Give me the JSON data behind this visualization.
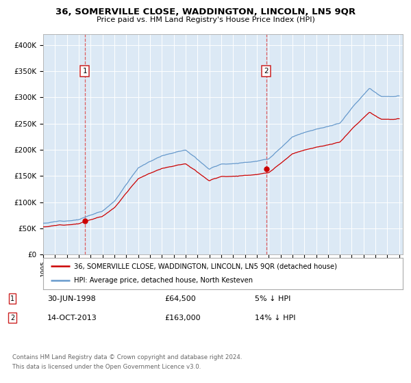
{
  "title": "36, SOMERVILLE CLOSE, WADDINGTON, LINCOLN, LN5 9QR",
  "subtitle": "Price paid vs. HM Land Registry's House Price Index (HPI)",
  "plot_bg_color": "#dce9f5",
  "y_ticks": [
    0,
    50000,
    100000,
    150000,
    200000,
    250000,
    300000,
    350000,
    400000
  ],
  "y_tick_labels": [
    "£0",
    "£50K",
    "£100K",
    "£150K",
    "£200K",
    "£250K",
    "£300K",
    "£350K",
    "£400K"
  ],
  "x_start_year": 1995,
  "x_end_year": 2025,
  "sale1_year": 1998.5,
  "sale1_price": 64500,
  "sale2_year": 2013.79,
  "sale2_price": 163000,
  "hpi_line_color": "#6699cc",
  "price_line_color": "#cc0000",
  "legend_line1": "36, SOMERVILLE CLOSE, WADDINGTON, LINCOLN, LN5 9QR (detached house)",
  "legend_line2": "HPI: Average price, detached house, North Kesteven",
  "footer1": "Contains HM Land Registry data © Crown copyright and database right 2024.",
  "footer2": "This data is licensed under the Open Government Licence v3.0.",
  "date1": "30-JUN-1998",
  "price1_str": "£64,500",
  "pct1": "5% ↓ HPI",
  "date2": "14-OCT-2013",
  "price2_str": "£163,000",
  "pct2": "14% ↓ HPI"
}
